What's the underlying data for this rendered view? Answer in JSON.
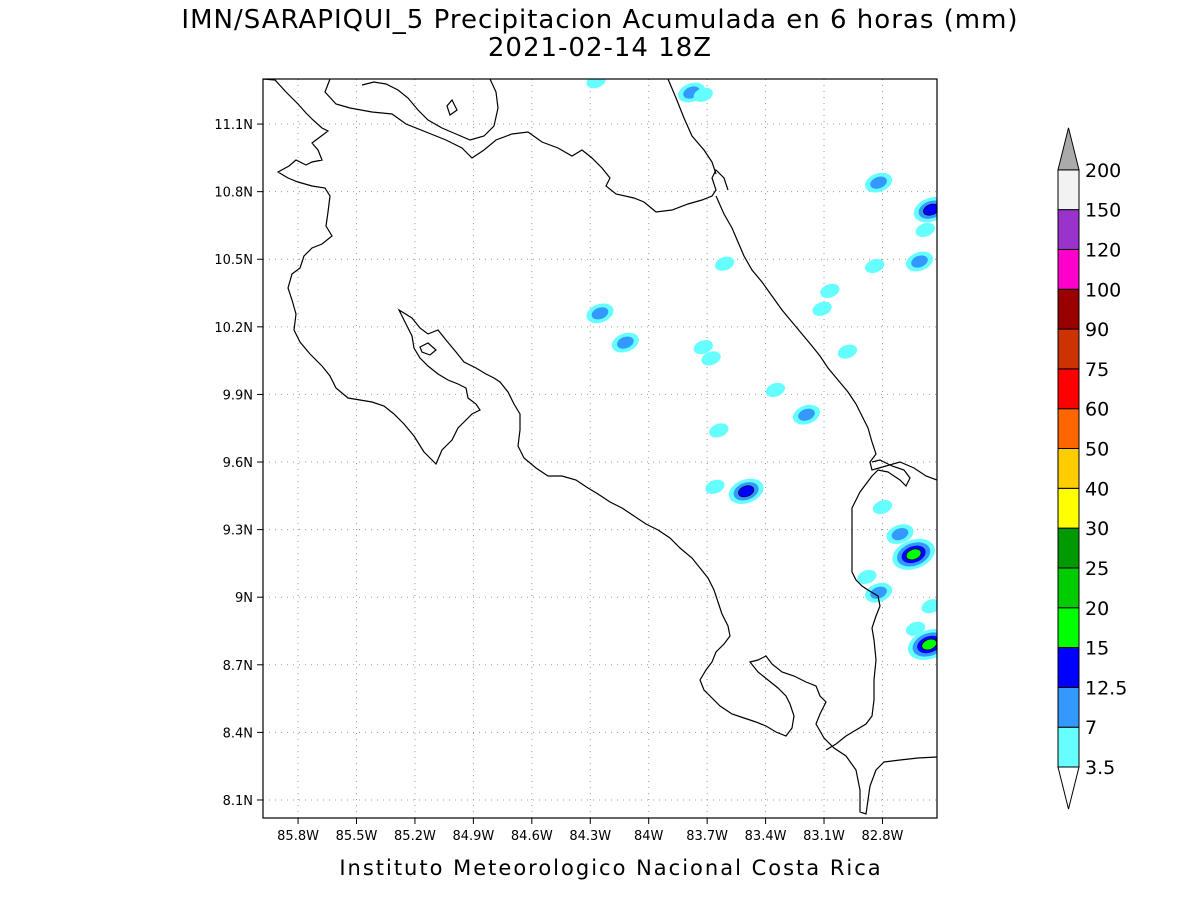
{
  "header": {
    "title": "IMN/SARAPIQUI_5 Precipitacion Acumulada en 6 horas (mm)",
    "subtitle": "2021-02-14 18Z"
  },
  "footer": {
    "credit": "Instituto Meteorologico Nacional Costa Rica"
  },
  "map": {
    "lon_range": [
      -85.98,
      -82.52
    ],
    "lat_range": [
      8.02,
      11.3
    ],
    "lon_ticks": [
      {
        "value": -85.8,
        "label": "85.8W"
      },
      {
        "value": -85.5,
        "label": "85.5W"
      },
      {
        "value": -85.2,
        "label": "85.2W"
      },
      {
        "value": -84.9,
        "label": "84.9W"
      },
      {
        "value": -84.6,
        "label": "84.6W"
      },
      {
        "value": -84.3,
        "label": "84.3W"
      },
      {
        "value": -84.0,
        "label": "84W"
      },
      {
        "value": -83.7,
        "label": "83.7W"
      },
      {
        "value": -83.4,
        "label": "83.4W"
      },
      {
        "value": -83.1,
        "label": "83.1W"
      },
      {
        "value": -82.8,
        "label": "82.8W"
      }
    ],
    "lat_ticks": [
      {
        "value": 11.1,
        "label": "11.1N"
      },
      {
        "value": 10.8,
        "label": "10.8N"
      },
      {
        "value": 10.5,
        "label": "10.5N"
      },
      {
        "value": 10.2,
        "label": "10.2N"
      },
      {
        "value": 9.9,
        "label": "9.9N"
      },
      {
        "value": 9.6,
        "label": "9.6N"
      },
      {
        "value": 9.3,
        "label": "9.3N"
      },
      {
        "value": 9.0,
        "label": "9N"
      },
      {
        "value": 8.7,
        "label": "8.7N"
      },
      {
        "value": 8.4,
        "label": "8.4N"
      },
      {
        "value": 8.1,
        "label": "8.1N"
      }
    ],
    "grid": true,
    "precip_cells": [
      {
        "lon": -83.78,
        "lat": 11.24,
        "level": 2
      },
      {
        "lon": -83.72,
        "lat": 11.23,
        "level": 1
      },
      {
        "lon": -84.27,
        "lat": 11.29,
        "level": 1
      },
      {
        "lon": -82.82,
        "lat": 10.84,
        "level": 2
      },
      {
        "lon": -82.55,
        "lat": 10.72,
        "level": 3
      },
      {
        "lon": -82.58,
        "lat": 10.63,
        "level": 1
      },
      {
        "lon": -82.61,
        "lat": 10.49,
        "level": 2
      },
      {
        "lon": -83.61,
        "lat": 10.48,
        "level": 1
      },
      {
        "lon": -82.84,
        "lat": 10.47,
        "level": 1
      },
      {
        "lon": -83.11,
        "lat": 10.28,
        "level": 1
      },
      {
        "lon": -83.07,
        "lat": 10.36,
        "level": 1
      },
      {
        "lon": -84.25,
        "lat": 10.26,
        "level": 2
      },
      {
        "lon": -84.12,
        "lat": 10.13,
        "level": 2
      },
      {
        "lon": -83.72,
        "lat": 10.11,
        "level": 1
      },
      {
        "lon": -83.68,
        "lat": 10.06,
        "level": 1
      },
      {
        "lon": -82.98,
        "lat": 10.09,
        "level": 1
      },
      {
        "lon": -83.35,
        "lat": 9.92,
        "level": 1
      },
      {
        "lon": -83.19,
        "lat": 9.81,
        "level": 2
      },
      {
        "lon": -83.64,
        "lat": 9.74,
        "level": 1
      },
      {
        "lon": -83.5,
        "lat": 9.47,
        "level": 3
      },
      {
        "lon": -83.66,
        "lat": 9.49,
        "level": 1
      },
      {
        "lon": -82.8,
        "lat": 9.4,
        "level": 1
      },
      {
        "lon": -82.71,
        "lat": 9.28,
        "level": 2
      },
      {
        "lon": -82.64,
        "lat": 9.19,
        "level": 4
      },
      {
        "lon": -82.82,
        "lat": 9.02,
        "level": 2
      },
      {
        "lon": -82.88,
        "lat": 9.09,
        "level": 1
      },
      {
        "lon": -82.63,
        "lat": 8.86,
        "level": 1
      },
      {
        "lon": -82.55,
        "lat": 8.96,
        "level": 1
      },
      {
        "lon": -82.56,
        "lat": 8.79,
        "level": 4
      }
    ]
  },
  "legend": {
    "labels": [
      "3.5",
      "7",
      "12.5",
      "15",
      "20",
      "25",
      "30",
      "40",
      "50",
      "60",
      "75",
      "90",
      "100",
      "120",
      "150",
      "200"
    ],
    "colors": [
      "#66ffff",
      "#3399ff",
      "#0000ff",
      "#00ff00",
      "#00cc00",
      "#009900",
      "#ffff00",
      "#ffcc00",
      "#ff6600",
      "#ff0000",
      "#cc3300",
      "#990000",
      "#ff00cc",
      "#9933cc",
      "#f2f2f2",
      "#aaaaaa"
    ]
  }
}
